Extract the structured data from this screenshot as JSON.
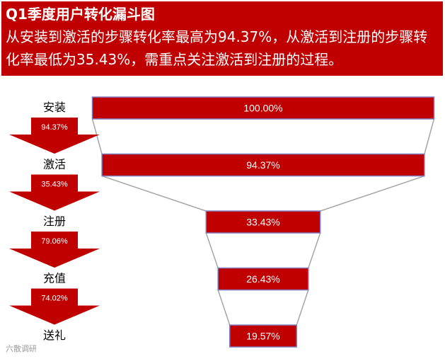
{
  "header": {
    "title": "Q1季度用户转化漏斗图",
    "subtitle": "从安装到激活的步骤转化率最高为94.37%，从激活到注册的步骤转化率最低为35.43%，需重点关注激活到注册的过程。"
  },
  "watermark": "六散调研",
  "colors": {
    "header_bg": "#c00000",
    "bar_fill": "#c00000",
    "bar_border": "#7f7fbf",
    "arrow_fill": "#c00000",
    "connector": "#a6a6a6"
  },
  "chart_data": {
    "type": "funnel",
    "title": "Q1季度用户转化漏斗图",
    "stages": [
      "安装",
      "激活",
      "注册",
      "充值",
      "送礼"
    ],
    "values": [
      100.0,
      94.37,
      33.43,
      26.43,
      19.57
    ],
    "value_labels": [
      "100.00%",
      "94.37%",
      "33.43%",
      "26.43%",
      "19.57%"
    ],
    "step_rates": [
      94.37,
      35.43,
      79.06,
      74.02
    ],
    "step_rate_labels": [
      "94.37%",
      "35.43%",
      "79.06%",
      "74.02%"
    ]
  }
}
